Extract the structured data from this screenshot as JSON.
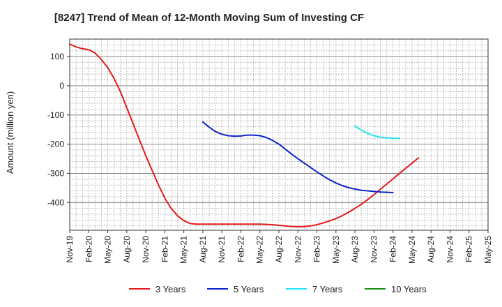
{
  "chart_data": {
    "type": "line",
    "title": "[8247]  Trend of Mean of 12-Month Moving Sum of Investing CF",
    "ylabel": "Amount (million yen)",
    "xlabel": "",
    "ylim": [
      -495,
      160
    ],
    "yticks": [
      100,
      0,
      -100,
      -200,
      -300,
      -400
    ],
    "ytick_labels": [
      "100",
      "0",
      "-100",
      "-200",
      "-300",
      "-400"
    ],
    "grid": true,
    "legend_position": "bottom-center",
    "x_tick_labels": [
      "Nov-19",
      "Feb-20",
      "May-20",
      "Aug-20",
      "Nov-20",
      "Feb-21",
      "May-21",
      "Aug-21",
      "Nov-21",
      "Feb-22",
      "May-22",
      "Aug-22",
      "Nov-22",
      "Feb-23",
      "May-23",
      "Aug-23",
      "Nov-23",
      "Feb-24",
      "May-24",
      "Aug-24",
      "Nov-24",
      "Feb-25",
      "May-25"
    ],
    "series": [
      {
        "name": "3 Years",
        "color": "#e31a1c",
        "start_month_index": 0,
        "values": [
          143,
          133,
          127,
          124,
          112,
          90,
          62,
          25,
          -20,
          -75,
          -130,
          -185,
          -240,
          -290,
          -340,
          -385,
          -420,
          -445,
          -462,
          -472,
          -474,
          -474,
          -474,
          -474,
          -474,
          -474,
          -474,
          -474,
          -474,
          -474,
          -474,
          -475,
          -476,
          -478,
          -480,
          -482,
          -483,
          -482,
          -480,
          -476,
          -470,
          -463,
          -455,
          -445,
          -433,
          -420,
          -406,
          -390,
          -373,
          -355,
          -337,
          -319,
          -301,
          -283,
          -265,
          -247
        ]
      },
      {
        "name": "5 Years",
        "color": "#0b24c9",
        "start_month_index": 21,
        "values": [
          -124,
          -142,
          -157,
          -166,
          -171,
          -173,
          -172,
          -169,
          -169,
          -171,
          -177,
          -187,
          -200,
          -217,
          -234,
          -250,
          -265,
          -280,
          -295,
          -309,
          -322,
          -333,
          -342,
          -349,
          -354,
          -358,
          -360,
          -362,
          -364,
          -365,
          -366
        ]
      },
      {
        "name": "7 Years",
        "color": "#22e5ee",
        "start_month_index": 45,
        "values": [
          -138,
          -152,
          -163,
          -171,
          -176,
          -179,
          -180,
          -180
        ]
      },
      {
        "name": "10 Years",
        "color": "#1a8a1a",
        "start_month_index": 0,
        "values": []
      }
    ]
  }
}
